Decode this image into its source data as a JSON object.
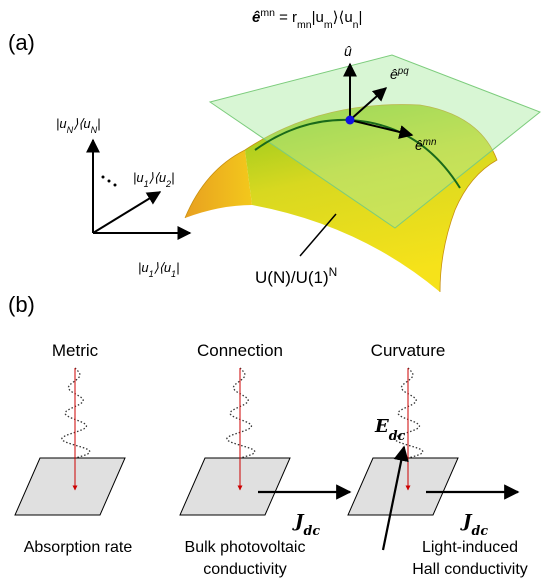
{
  "panel_a": {
    "label": "(a)",
    "formula": [
      {
        "text": "ê"
      },
      {
        "sup": "mn"
      },
      {
        "text": " = r"
      },
      {
        "sub": "mn"
      },
      {
        "text": "|u"
      },
      {
        "sub": "m"
      },
      {
        "text": "⟩⟨u"
      },
      {
        "sub": "n"
      },
      {
        "text": "|"
      }
    ],
    "axes": {
      "vertical": [
        {
          "text": "|u"
        },
        {
          "sub": "N"
        },
        {
          "text": "⟩⟨u"
        },
        {
          "sub": "N"
        },
        {
          "text": "|"
        }
      ],
      "diagonal": [
        {
          "text": "|u"
        },
        {
          "sub": "1"
        },
        {
          "text": "⟩⟨u"
        },
        {
          "sub": "2"
        },
        {
          "text": "|"
        }
      ],
      "horizontal": [
        {
          "text": "|u"
        },
        {
          "sub": "1"
        },
        {
          "text": "⟩⟨u"
        },
        {
          "sub": "1"
        },
        {
          "text": "|"
        }
      ]
    },
    "vectors": {
      "normal": [
        {
          "text": "û"
        }
      ],
      "tangent_pq": [
        {
          "text": "ê"
        },
        {
          "sup": "pq"
        }
      ],
      "tangent_mn": [
        {
          "text": "ê"
        },
        {
          "sup": "mn"
        }
      ]
    },
    "manifold": [
      {
        "text": "U(N)/U(1)"
      },
      {
        "sup": "N"
      }
    ]
  },
  "panel_b": {
    "label": "(b)",
    "columns": [
      {
        "title": "Metric",
        "caption": [
          "Absorption rate"
        ]
      },
      {
        "title": "Connection",
        "current": [
          {
            "text": "J"
          },
          {
            "sub": "dc"
          }
        ],
        "caption": [
          "Bulk photovoltaic",
          "conductivity"
        ]
      },
      {
        "title": "Curvature",
        "field": [
          {
            "text": "E"
          },
          {
            "sub": "dc"
          }
        ],
        "current": [
          {
            "text": "J"
          },
          {
            "sub": "dc"
          }
        ],
        "caption": [
          "Light-induced",
          "Hall conductivity"
        ]
      }
    ]
  }
}
